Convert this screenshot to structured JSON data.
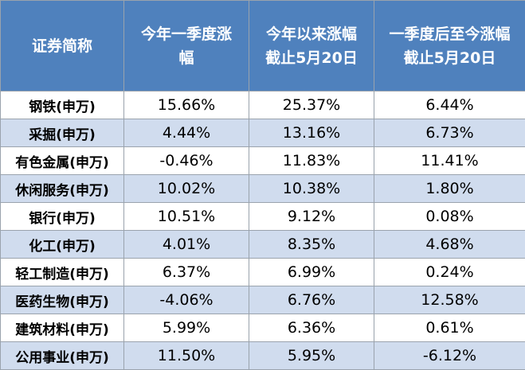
{
  "table": {
    "headers": [
      [
        "证券简称"
      ],
      [
        "今年一季度涨",
        "幅"
      ],
      [
        "今年以来涨幅",
        "截止5月20日"
      ],
      [
        "一季度后至今涨幅",
        "截止5月20日"
      ]
    ],
    "rows": [
      {
        "name": "钢铁(申万)",
        "q1": "15.66%",
        "ytd": "25.37%",
        "since_q1": "6.44%"
      },
      {
        "name": "采掘(申万)",
        "q1": "4.44%",
        "ytd": "13.16%",
        "since_q1": "6.73%"
      },
      {
        "name": "有色金属(申万)",
        "q1": "-0.46%",
        "ytd": "11.83%",
        "since_q1": "11.41%"
      },
      {
        "name": "休闲服务(申万)",
        "q1": "10.02%",
        "ytd": "10.38%",
        "since_q1": "1.80%"
      },
      {
        "name": "银行(申万)",
        "q1": "10.51%",
        "ytd": "9.12%",
        "since_q1": "0.08%"
      },
      {
        "name": "化工(申万)",
        "q1": "4.01%",
        "ytd": "8.35%",
        "since_q1": "4.68%"
      },
      {
        "name": "轻工制造(申万)",
        "q1": "6.37%",
        "ytd": "6.99%",
        "since_q1": "0.24%"
      },
      {
        "name": "医药生物(申万)",
        "q1": "-4.06%",
        "ytd": "6.76%",
        "since_q1": "12.58%"
      },
      {
        "name": "建筑材料(申万)",
        "q1": "5.99%",
        "ytd": "6.36%",
        "since_q1": "0.61%"
      },
      {
        "name": "公用事业(申万)",
        "q1": "11.50%",
        "ytd": "5.95%",
        "since_q1": "-6.12%"
      }
    ]
  },
  "colors": {
    "header_bg": "#4f81bd",
    "header_text": "#ffffff",
    "row_shade": "#d0dcee",
    "row_plain": "#ffffff",
    "border": "#9aa3ad"
  }
}
